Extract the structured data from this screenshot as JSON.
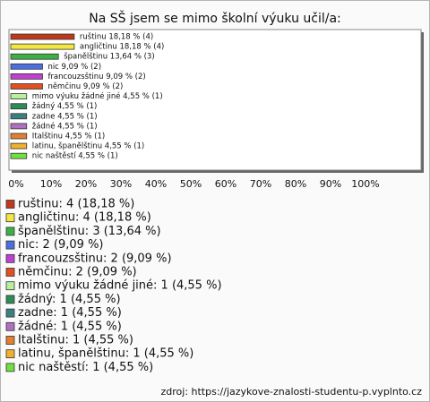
{
  "chart_data": {
    "type": "bar",
    "orientation": "horizontal",
    "title": "Na SŠ jsem se mimo školní výuku učil/a:",
    "categories": [
      "ruštinu",
      "angličtinu",
      "španělštinu",
      "nic",
      "francouzsštinu",
      "němčinu",
      "mimo výuku žádné jiné",
      "žádný",
      "zadne",
      "žádné",
      "Italštinu",
      "latinu, španělštinu",
      "nic naštěstí"
    ],
    "values": [
      18.18,
      18.18,
      13.64,
      9.09,
      9.09,
      9.09,
      4.55,
      4.55,
      4.55,
      4.55,
      4.55,
      4.55,
      4.55
    ],
    "value_labels": [
      "ruštinu 18,18 % (4)",
      "angličtinu 18,18 % (4)",
      "španělštinu 13,64 % (3)",
      "nic 9,09 % (2)",
      "francouzsštinu 9,09 % (2)",
      "němčinu 9,09 % (2)",
      "mimo výuku žádné jiné 4,55 % (1)",
      "žádný 4,55 % (1)",
      "zadne 4,55 % (1)",
      "žádné 4,55 % (1)",
      "Italštinu 4,55 % (1)",
      "latinu, španělštinu 4,55 % (1)",
      "nic naštěstí 4,55 % (1)"
    ],
    "legend_labels": [
      "ruštinu: 4 (18,18 %)",
      "angličtinu: 4 (18,18 %)",
      "španělštinu: 3 (13,64 %)",
      "nic: 2 (9,09 %)",
      "francouzsštinu: 2 (9,09 %)",
      "němčinu: 2 (9,09 %)",
      "mimo výuku žádné jiné: 1 (4,55 %)",
      "žádný: 1 (4,55 %)",
      "zadne: 1 (4,55 %)",
      "žádné: 1 (4,55 %)",
      "Italštinu: 1 (4,55 %)",
      "latinu, španělštinu: 1 (4,55 %)",
      "nic naštěstí: 1 (4,55 %)"
    ],
    "colors": [
      "#c0391b",
      "#f2e640",
      "#3cb043",
      "#4a6fe0",
      "#c040d0",
      "#e05020",
      "#b8f0a0",
      "#2e8b57",
      "#3a8080",
      "#b070c0",
      "#e08030",
      "#f0b030",
      "#70e040"
    ],
    "xlim": [
      0,
      100
    ],
    "xticks": [
      {
        "value": 0,
        "label": "0%"
      },
      {
        "value": 10,
        "label": "10%"
      },
      {
        "value": 20,
        "label": "20%"
      },
      {
        "value": 30,
        "label": "30%"
      },
      {
        "value": 40,
        "label": "40%"
      },
      {
        "value": 50,
        "label": "50%"
      },
      {
        "value": 60,
        "label": "60%"
      },
      {
        "value": 70,
        "label": "70%"
      },
      {
        "value": 80,
        "label": "80%"
      },
      {
        "value": 90,
        "label": "90%"
      },
      {
        "value": 100,
        "label": "100%"
      }
    ],
    "source": "zdroj: https://jazykove-znalosti-studentu-p.vyplnto.cz"
  }
}
